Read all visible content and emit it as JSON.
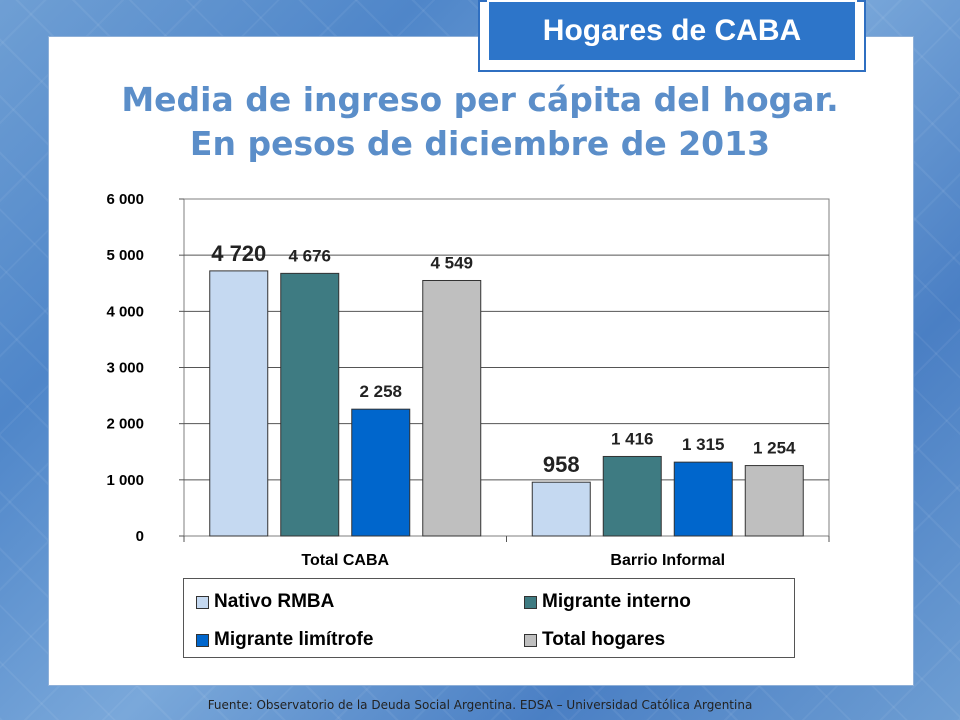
{
  "badge": "Hogares de CABA",
  "title_line1": "Media de ingreso per cápita del hogar.",
  "title_line2": "En pesos de diciembre de 2013",
  "footer": "Fuente:  Observatorio de  la Deuda Social Argentina. EDSA  – Universidad Católica Argentina",
  "chart_data": {
    "type": "bar",
    "categories": [
      "Total CABA",
      "Barrio Informal"
    ],
    "series": [
      {
        "name": "Nativo RMBA",
        "values": [
          4720,
          958
        ],
        "labels": [
          "4 720",
          "958"
        ],
        "color": "#c5d9f1"
      },
      {
        "name": "Migrante interno",
        "values": [
          4676,
          1416
        ],
        "labels": [
          "4 676",
          "1 416"
        ],
        "color": "#3e7b82"
      },
      {
        "name": "Migrante limítrofe",
        "values": [
          2258,
          1315
        ],
        "labels": [
          "2 258",
          "1 315"
        ],
        "color": "#0066cc"
      },
      {
        "name": "Total hogares",
        "values": [
          4549,
          1254
        ],
        "labels": [
          "4 549",
          "1 254"
        ],
        "color": "#bfbfbf"
      }
    ],
    "ylim": [
      0,
      6000
    ],
    "yticks": [
      {
        "value": 0,
        "label": "0"
      },
      {
        "value": 1000,
        "label": "1 000"
      },
      {
        "value": 2000,
        "label": "2 000"
      },
      {
        "value": 3000,
        "label": "3 000"
      },
      {
        "value": 4000,
        "label": "4 000"
      },
      {
        "value": 5000,
        "label": "5 000"
      },
      {
        "value": 6000,
        "label": "6 000"
      }
    ],
    "grid": true,
    "legend": "bottom",
    "xlabel": "",
    "ylabel": ""
  }
}
